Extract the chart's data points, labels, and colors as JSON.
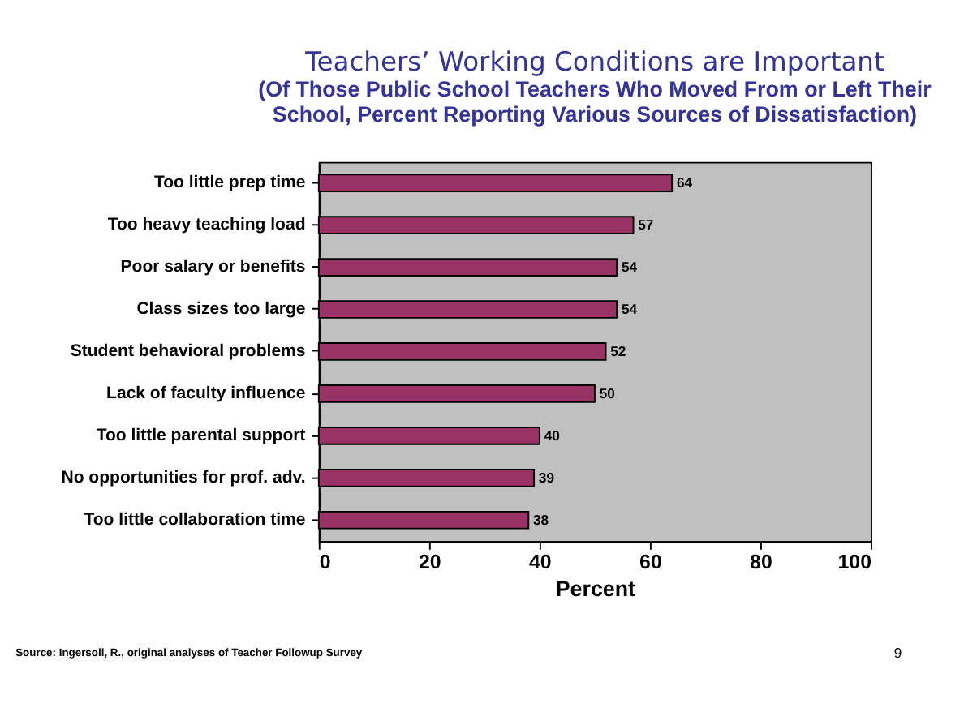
{
  "chart_data": {
    "type": "bar",
    "orientation": "horizontal",
    "title": "Teachers’ Working Conditions are Important",
    "subtitle": "(Of Those Public School Teachers Who Moved From or Left Their School, Percent Reporting Various Sources of Dissatisfaction)",
    "categories": [
      "Too little prep time",
      "Too heavy teaching load",
      "Poor salary or benefits",
      "Class sizes too large",
      "Student behavioral problems",
      "Lack of faculty influence",
      "Too little parental support",
      "No opportunities for prof. adv.",
      "Too little collaboration time"
    ],
    "values": [
      64,
      57,
      54,
      54,
      52,
      50,
      40,
      39,
      38
    ],
    "color": "#993366",
    "xlim": [
      0,
      100
    ],
    "xticks": [
      0,
      20,
      40,
      60,
      80,
      100
    ],
    "xlabel": "Percent",
    "data_labels": true,
    "grid": false,
    "annotations": [
      "Source: Ingersoll, R., original analyses of Teacher Followup Survey",
      "9"
    ]
  }
}
